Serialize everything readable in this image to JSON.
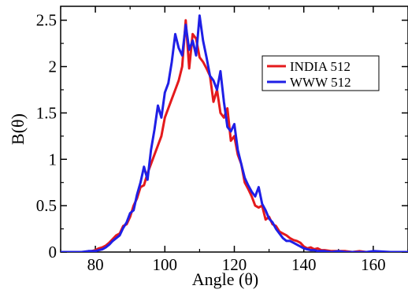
{
  "chart_data": {
    "type": "line",
    "title": "",
    "xlabel": "Angle (θ)",
    "ylabel": "B(θ)",
    "xlim": [
      70,
      170
    ],
    "ylim": [
      0,
      2.65
    ],
    "x_ticks": [
      80,
      100,
      120,
      140,
      160
    ],
    "y_ticks": [
      0,
      0.5,
      1,
      1.5,
      2,
      2.5
    ],
    "x_tick_labels": [
      "80",
      "100",
      "120",
      "140",
      "160"
    ],
    "y_tick_labels": [
      "0",
      "0.5",
      "1",
      "1.5",
      "2",
      "2.5"
    ],
    "grid": false,
    "legend_position": "upper-right",
    "series": [
      {
        "name": "INDIA 512",
        "color": "#e41a1c",
        "x": [
          70,
          72,
          74,
          76,
          78,
          80,
          81,
          82,
          83,
          84,
          85,
          86,
          87,
          88,
          89,
          90,
          91,
          92,
          93,
          94,
          95,
          96,
          97,
          98,
          99,
          100,
          101,
          102,
          103,
          104,
          105,
          106,
          107,
          108,
          109,
          110,
          111,
          112,
          113,
          114,
          115,
          116,
          117,
          118,
          119,
          120,
          121,
          122,
          123,
          124,
          125,
          126,
          127,
          128,
          129,
          130,
          131,
          132,
          133,
          134,
          135,
          136,
          137,
          138,
          139,
          140,
          141,
          142,
          143,
          144,
          145,
          146,
          148,
          150,
          152,
          154,
          156,
          158,
          160,
          165,
          170
        ],
        "y": [
          0,
          0,
          0,
          0,
          0,
          0.02,
          0.04,
          0.05,
          0.07,
          0.1,
          0.14,
          0.18,
          0.2,
          0.28,
          0.3,
          0.38,
          0.5,
          0.58,
          0.7,
          0.72,
          0.85,
          0.95,
          1.05,
          1.15,
          1.25,
          1.45,
          1.55,
          1.65,
          1.75,
          1.85,
          2.0,
          2.5,
          1.98,
          2.35,
          2.3,
          2.1,
          2.05,
          1.98,
          1.9,
          1.62,
          1.75,
          1.5,
          1.45,
          1.55,
          1.2,
          1.25,
          1.05,
          0.95,
          0.75,
          0.68,
          0.6,
          0.5,
          0.48,
          0.5,
          0.35,
          0.38,
          0.3,
          0.28,
          0.22,
          0.2,
          0.18,
          0.15,
          0.13,
          0.12,
          0.1,
          0.06,
          0.04,
          0.05,
          0.03,
          0.04,
          0.02,
          0.02,
          0.01,
          0.01,
          0.01,
          0,
          0.01,
          0,
          0,
          0,
          0
        ]
      },
      {
        "name": "WWW 512",
        "color": "#1f1fe6",
        "x": [
          70,
          72,
          74,
          76,
          78,
          80,
          81,
          82,
          83,
          84,
          85,
          86,
          87,
          88,
          89,
          90,
          91,
          92,
          93,
          94,
          95,
          96,
          97,
          98,
          99,
          100,
          101,
          102,
          103,
          104,
          105,
          106,
          107,
          108,
          109,
          110,
          111,
          112,
          113,
          114,
          115,
          116,
          117,
          118,
          119,
          120,
          121,
          122,
          123,
          124,
          125,
          126,
          127,
          128,
          129,
          130,
          131,
          132,
          133,
          134,
          135,
          136,
          137,
          138,
          139,
          140,
          141,
          142,
          143,
          144,
          145,
          146,
          148,
          150,
          152,
          154,
          156,
          158,
          160,
          165,
          170
        ],
        "y": [
          0,
          0,
          0,
          0,
          0.01,
          0.01,
          0.02,
          0.03,
          0.05,
          0.08,
          0.12,
          0.15,
          0.18,
          0.26,
          0.32,
          0.42,
          0.45,
          0.62,
          0.75,
          0.92,
          0.78,
          1.1,
          1.32,
          1.58,
          1.45,
          1.72,
          1.82,
          2.05,
          2.35,
          2.2,
          2.12,
          2.45,
          2.18,
          2.28,
          2.12,
          2.55,
          2.28,
          2.1,
          1.9,
          1.85,
          1.75,
          1.95,
          1.62,
          1.35,
          1.3,
          1.38,
          1.1,
          0.95,
          0.8,
          0.72,
          0.65,
          0.6,
          0.7,
          0.52,
          0.45,
          0.36,
          0.32,
          0.25,
          0.2,
          0.15,
          0.12,
          0.12,
          0.1,
          0.08,
          0.06,
          0.04,
          0.03,
          0.02,
          0.02,
          0.01,
          0.01,
          0.01,
          0,
          0.01,
          0,
          0,
          0,
          0,
          0.01,
          0,
          0
        ]
      }
    ]
  }
}
